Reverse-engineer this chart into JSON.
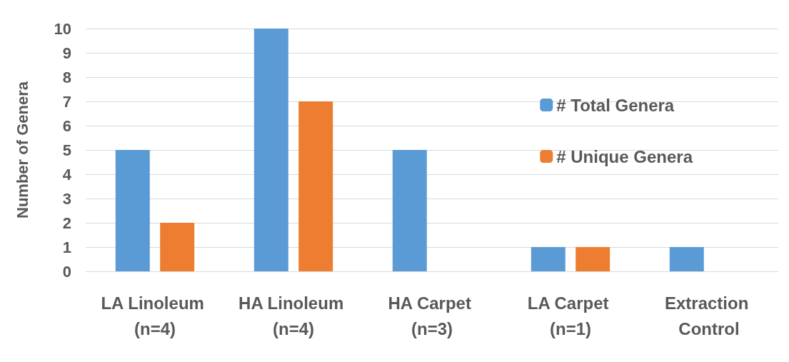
{
  "chart_data": {
    "type": "bar",
    "ylabel": "Number of Genera",
    "categories": [
      "LA Linoleum (n=4)",
      "HA Linoleum (n=4)",
      "HA Carpet (n=3)",
      "LA Carpet (n=1)",
      "Extraction Control"
    ],
    "series": [
      {
        "name": "# Total Genera",
        "color": "#5b9bd5",
        "values": [
          5,
          10,
          5,
          1,
          1
        ]
      },
      {
        "name": "# Unique Genera",
        "color": "#ed7d31",
        "values": [
          2,
          7,
          0,
          1,
          0
        ]
      }
    ],
    "ylim": [
      0,
      10
    ],
    "yticks": [
      0,
      1,
      2,
      3,
      4,
      5,
      6,
      7,
      8,
      9,
      10
    ],
    "grid": "y",
    "legend": "top right"
  }
}
